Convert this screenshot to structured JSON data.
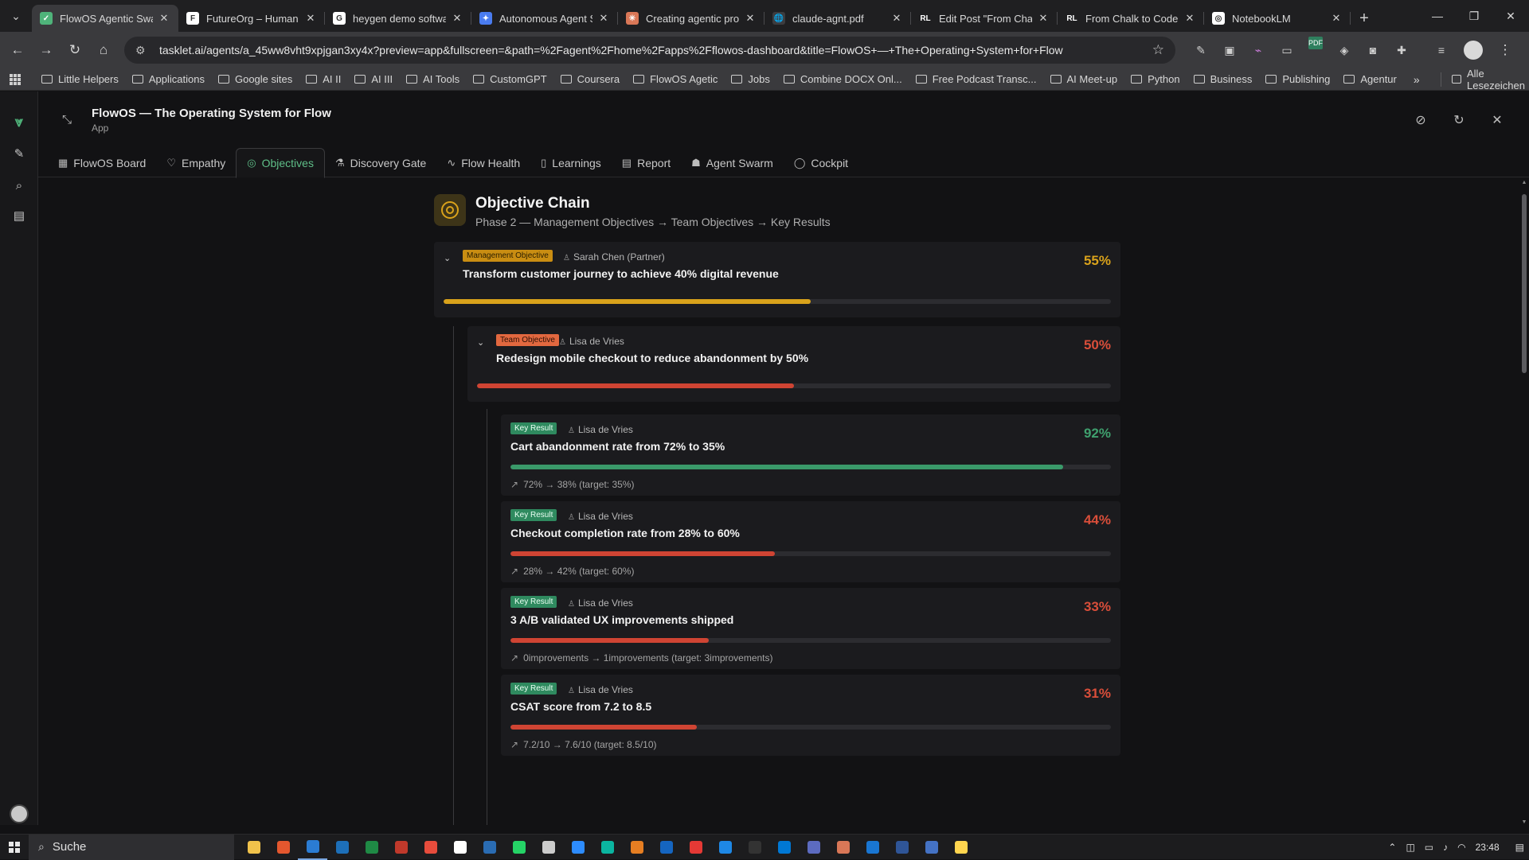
{
  "browser": {
    "tabs": [
      {
        "title": "FlowOS Agentic Swar",
        "favicon_color": "#4fb37a",
        "favicon_text": "✓",
        "active": true
      },
      {
        "title": "FutureOrg – Human f",
        "favicon_color": "#ffffff",
        "favicon_text": "F",
        "active": false
      },
      {
        "title": "heygen demo softwa",
        "favicon_color": "#ffffff",
        "favicon_text": "G",
        "active": false
      },
      {
        "title": "Autonomous Agent S",
        "favicon_color": "#4a7cf0",
        "favicon_text": "✦",
        "active": false
      },
      {
        "title": "Creating agentic pro",
        "favicon_color": "#d97757",
        "favicon_text": "✳",
        "active": false
      },
      {
        "title": "claude-agnt.pdf",
        "favicon_color": "#3c3c3f",
        "favicon_text": "🌐",
        "active": false
      },
      {
        "title": "Edit Post \"From Chalk",
        "favicon_color": "#1f1f21",
        "favicon_text": "RL",
        "active": false
      },
      {
        "title": "From Chalk to Code:",
        "favicon_color": "#1f1f21",
        "favicon_text": "RL",
        "active": false
      },
      {
        "title": "NotebookLM",
        "favicon_color": "#ffffff",
        "favicon_text": "◎",
        "active": false
      }
    ],
    "url": "tasklet.ai/agents/a_45ww8vht9xpjgan3xy4x?preview=app&fullscreen=&path=%2Fagent%2Fhome%2Fapps%2Fflowos-dashboard&title=FlowOS+—+The+Operating+System+for+Flow",
    "bookmarks": [
      "Little Helpers",
      "Applications",
      "Google sites",
      "AI II",
      "AI III",
      "AI Tools",
      "CustomGPT",
      "Coursera",
      "FlowOS Agetic",
      "Jobs",
      "Combine DOCX Onl...",
      "Free Podcast Transc...",
      "AI Meet-up",
      "Python",
      "Business",
      "Publishing",
      "Agentur"
    ],
    "more_bookmarks": "»",
    "all_bookmarks": "Alle Lesezeichen"
  },
  "app": {
    "title": "FlowOS — The Operating System for Flow",
    "subtitle": "App",
    "nav": [
      {
        "label": "FlowOS Board",
        "icon": "grid-icon"
      },
      {
        "label": "Empathy",
        "icon": "heart-icon"
      },
      {
        "label": "Objectives",
        "icon": "target-icon",
        "active": true
      },
      {
        "label": "Discovery Gate",
        "icon": "flask-icon"
      },
      {
        "label": "Flow Health",
        "icon": "pulse-icon"
      },
      {
        "label": "Learnings",
        "icon": "book-icon"
      },
      {
        "label": "Report",
        "icon": "document-icon"
      },
      {
        "label": "Agent Swarm",
        "icon": "robot-icon"
      },
      {
        "label": "Cockpit",
        "icon": "chat-icon"
      }
    ]
  },
  "chain": {
    "title": "Objective Chain",
    "subtitle": "Phase 2 — Management Objectives → Team Objectives → Key Results"
  },
  "management": {
    "badge": "Management Objective",
    "owner": "Sarah Chen (Partner)",
    "title": "Transform customer journey to achieve 40% digital revenue",
    "percent_label": "55%",
    "progress": 0.55
  },
  "team": {
    "badge": "Team Objective",
    "owner": "Lisa de Vries",
    "title": "Redesign mobile checkout to reduce abandonment by 50%",
    "percent_label": "50%",
    "progress": 0.5
  },
  "key_results": [
    {
      "badge": "Key Result",
      "owner": "Lisa de Vries",
      "title": "Cart abandonment rate from 72% to 35%",
      "percent_label": "92%",
      "progress": 0.92,
      "status": "green",
      "metric": "72% → 38% (target: 35%)"
    },
    {
      "badge": "Key Result",
      "owner": "Lisa de Vries",
      "title": "Checkout completion rate from 28% to 60%",
      "percent_label": "44%",
      "progress": 0.44,
      "status": "red",
      "metric": "28% → 42% (target: 60%)"
    },
    {
      "badge": "Key Result",
      "owner": "Lisa de Vries",
      "title": "3 A/B validated UX improvements shipped",
      "percent_label": "33%",
      "progress": 0.33,
      "status": "red",
      "metric": "0improvements → 1improvements (target: 3improvements)"
    },
    {
      "badge": "Key Result",
      "owner": "Lisa de Vries",
      "title": "CSAT score from 7.2 to 8.5",
      "percent_label": "31%",
      "progress": 0.31,
      "status": "red",
      "metric": "7.2/10 → 7.6/10 (target: 8.5/10)"
    }
  ],
  "taskbar": {
    "search_label": "Suche",
    "time": "23:48"
  },
  "colors": {
    "accent": "#4fb37a",
    "gold": "#d9a21b",
    "red": "#cf4433",
    "green": "#3a9a6a"
  }
}
